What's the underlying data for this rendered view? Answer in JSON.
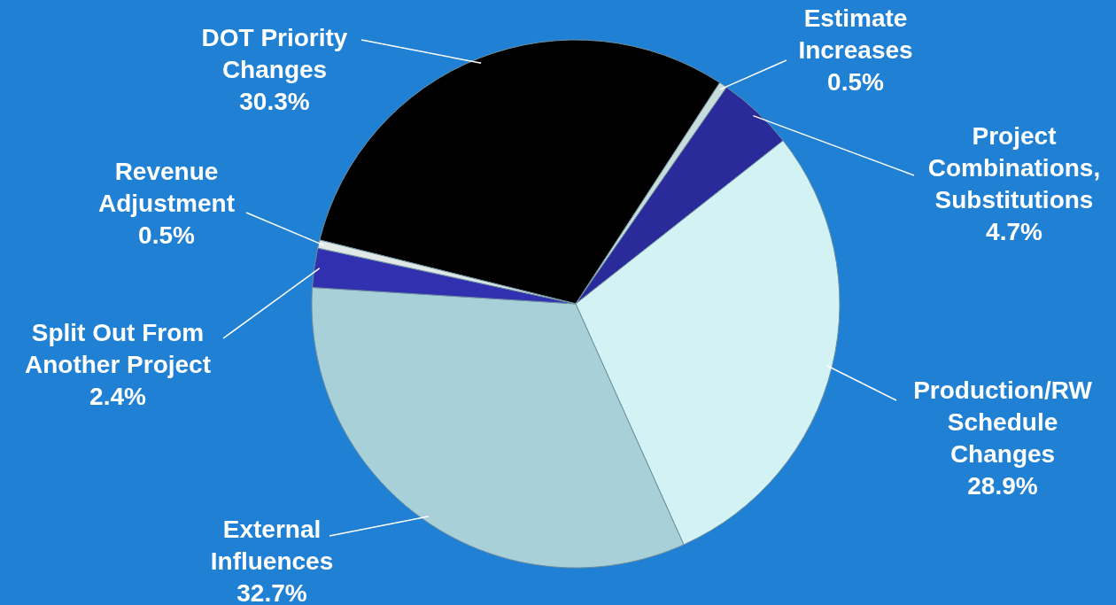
{
  "chart_data": {
    "type": "pie",
    "categories": [
      "DOT Priority Changes",
      "Estimate Increases",
      "Project Combinations, Substitutions",
      "Production/RW Schedule Changes",
      "External Influences",
      "Split Out From Another Project",
      "Revenue Adjustment"
    ],
    "values": [
      30.3,
      0.5,
      4.7,
      28.9,
      32.7,
      2.4,
      0.5
    ],
    "value_labels": [
      "30.3%",
      "0.5%",
      "4.7%",
      "28.9%",
      "32.7%",
      "2.4%",
      "0.5%"
    ],
    "colors": [
      "#000000",
      "#c8dcdc",
      "#2a2a9a",
      "#d2f2f4",
      "#a8d0d8",
      "#3030b0",
      "#e0e8e8"
    ],
    "legend": false
  }
}
